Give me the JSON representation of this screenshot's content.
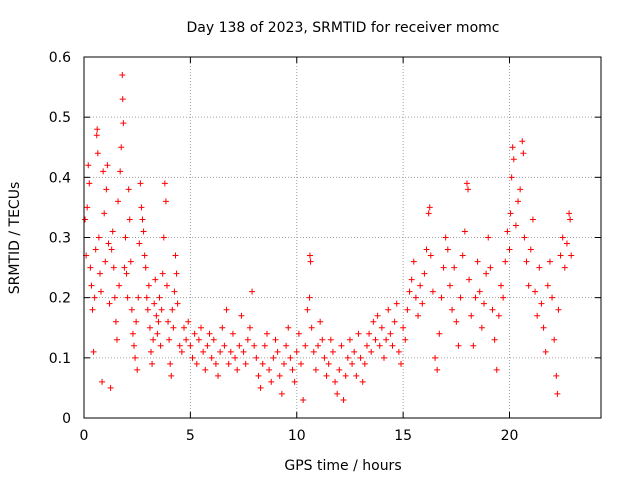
{
  "chart_data": {
    "type": "scatter",
    "title": "Day 138 of 2023, SRMTID for receiver momc",
    "xlabel": "GPS time / hours",
    "ylabel": "SRMTID / TECUs",
    "xlim": [
      0,
      24.3
    ],
    "ylim": [
      0,
      0.6
    ],
    "xticks": [
      0,
      5,
      10,
      15,
      20
    ],
    "xtick_labels": [
      "0",
      "5",
      "10",
      "15",
      "20"
    ],
    "yticks": [
      0,
      0.1,
      0.2,
      0.3,
      0.4,
      0.5,
      0.6
    ],
    "ytick_labels": [
      "0",
      "0.1",
      "0.2",
      "0.3",
      "0.4",
      "0.5",
      "0.6"
    ],
    "grid": true,
    "marker": "+",
    "color": "#ff0000",
    "series": [
      {
        "name": "SRMTID",
        "points": [
          [
            0.05,
            0.33
          ],
          [
            0.1,
            0.27
          ],
          [
            0.15,
            0.35
          ],
          [
            0.2,
            0.42
          ],
          [
            0.25,
            0.39
          ],
          [
            0.3,
            0.25
          ],
          [
            0.35,
            0.22
          ],
          [
            0.4,
            0.18
          ],
          [
            0.45,
            0.11
          ],
          [
            0.5,
            0.2
          ],
          [
            0.55,
            0.28
          ],
          [
            0.6,
            0.47
          ],
          [
            0.62,
            0.48
          ],
          [
            0.65,
            0.44
          ],
          [
            0.7,
            0.3
          ],
          [
            0.75,
            0.24
          ],
          [
            0.8,
            0.21
          ],
          [
            0.85,
            0.06
          ],
          [
            0.9,
            0.41
          ],
          [
            0.95,
            0.34
          ],
          [
            1.0,
            0.26
          ],
          [
            1.05,
            0.38
          ],
          [
            1.1,
            0.42
          ],
          [
            1.15,
            0.29
          ],
          [
            1.2,
            0.19
          ],
          [
            1.25,
            0.05
          ],
          [
            1.3,
            0.28
          ],
          [
            1.35,
            0.31
          ],
          [
            1.4,
            0.25
          ],
          [
            1.45,
            0.2
          ],
          [
            1.5,
            0.16
          ],
          [
            1.55,
            0.13
          ],
          [
            1.6,
            0.36
          ],
          [
            1.65,
            0.22
          ],
          [
            1.7,
            0.41
          ],
          [
            1.75,
            0.45
          ],
          [
            1.8,
            0.57
          ],
          [
            1.82,
            0.53
          ],
          [
            1.85,
            0.49
          ],
          [
            1.9,
            0.25
          ],
          [
            1.95,
            0.3
          ],
          [
            2.0,
            0.24
          ],
          [
            2.05,
            0.2
          ],
          [
            2.1,
            0.38
          ],
          [
            2.15,
            0.33
          ],
          [
            2.2,
            0.26
          ],
          [
            2.25,
            0.18
          ],
          [
            2.3,
            0.14
          ],
          [
            2.35,
            0.12
          ],
          [
            2.4,
            0.1
          ],
          [
            2.45,
            0.16
          ],
          [
            2.5,
            0.08
          ],
          [
            2.55,
            0.2
          ],
          [
            2.6,
            0.29
          ],
          [
            2.65,
            0.39
          ],
          [
            2.7,
            0.35
          ],
          [
            2.75,
            0.33
          ],
          [
            2.8,
            0.31
          ],
          [
            2.85,
            0.27
          ],
          [
            2.9,
            0.25
          ],
          [
            2.95,
            0.2
          ],
          [
            3.0,
            0.18
          ],
          [
            3.05,
            0.22
          ],
          [
            3.1,
            0.15
          ],
          [
            3.15,
            0.11
          ],
          [
            3.2,
            0.09
          ],
          [
            3.25,
            0.13
          ],
          [
            3.3,
            0.19
          ],
          [
            3.35,
            0.23
          ],
          [
            3.4,
            0.17
          ],
          [
            3.45,
            0.14
          ],
          [
            3.5,
            0.16
          ],
          [
            3.55,
            0.2
          ],
          [
            3.6,
            0.12
          ],
          [
            3.65,
            0.18
          ],
          [
            3.7,
            0.24
          ],
          [
            3.75,
            0.3
          ],
          [
            3.8,
            0.39
          ],
          [
            3.85,
            0.36
          ],
          [
            3.9,
            0.22
          ],
          [
            3.95,
            0.16
          ],
          [
            4.0,
            0.13
          ],
          [
            4.05,
            0.09
          ],
          [
            4.1,
            0.07
          ],
          [
            4.15,
            0.18
          ],
          [
            4.2,
            0.15
          ],
          [
            4.25,
            0.21
          ],
          [
            4.3,
            0.27
          ],
          [
            4.35,
            0.24
          ],
          [
            4.4,
            0.19
          ],
          [
            4.5,
            0.12
          ],
          [
            4.6,
            0.11
          ],
          [
            4.7,
            0.15
          ],
          [
            4.8,
            0.13
          ],
          [
            4.9,
            0.16
          ],
          [
            5.0,
            0.12
          ],
          [
            5.1,
            0.1
          ],
          [
            5.2,
            0.14
          ],
          [
            5.3,
            0.09
          ],
          [
            5.4,
            0.13
          ],
          [
            5.5,
            0.15
          ],
          [
            5.6,
            0.11
          ],
          [
            5.7,
            0.08
          ],
          [
            5.8,
            0.12
          ],
          [
            5.9,
            0.14
          ],
          [
            6.0,
            0.1
          ],
          [
            6.1,
            0.13
          ],
          [
            6.2,
            0.09
          ],
          [
            6.3,
            0.07
          ],
          [
            6.4,
            0.11
          ],
          [
            6.5,
            0.15
          ],
          [
            6.6,
            0.12
          ],
          [
            6.7,
            0.18
          ],
          [
            6.8,
            0.09
          ],
          [
            6.9,
            0.11
          ],
          [
            7.0,
            0.14
          ],
          [
            7.1,
            0.1
          ],
          [
            7.2,
            0.08
          ],
          [
            7.3,
            0.12
          ],
          [
            7.4,
            0.17
          ],
          [
            7.5,
            0.11
          ],
          [
            7.6,
            0.09
          ],
          [
            7.7,
            0.13
          ],
          [
            7.8,
            0.15
          ],
          [
            7.9,
            0.21
          ],
          [
            8.0,
            0.12
          ],
          [
            8.1,
            0.1
          ],
          [
            8.2,
            0.07
          ],
          [
            8.3,
            0.05
          ],
          [
            8.4,
            0.09
          ],
          [
            8.5,
            0.12
          ],
          [
            8.6,
            0.14
          ],
          [
            8.7,
            0.08
          ],
          [
            8.8,
            0.06
          ],
          [
            8.9,
            0.1
          ],
          [
            9.0,
            0.13
          ],
          [
            9.1,
            0.11
          ],
          [
            9.2,
            0.07
          ],
          [
            9.3,
            0.04
          ],
          [
            9.4,
            0.09
          ],
          [
            9.5,
            0.12
          ],
          [
            9.6,
            0.15
          ],
          [
            9.7,
            0.1
          ],
          [
            9.8,
            0.08
          ],
          [
            9.9,
            0.06
          ],
          [
            10.0,
            0.11
          ],
          [
            10.1,
            0.14
          ],
          [
            10.2,
            0.09
          ],
          [
            10.3,
            0.03
          ],
          [
            10.4,
            0.12
          ],
          [
            10.5,
            0.18
          ],
          [
            10.6,
            0.2
          ],
          [
            10.62,
            0.27
          ],
          [
            10.65,
            0.26
          ],
          [
            10.7,
            0.15
          ],
          [
            10.8,
            0.11
          ],
          [
            10.9,
            0.08
          ],
          [
            11.0,
            0.12
          ],
          [
            11.1,
            0.16
          ],
          [
            11.2,
            0.13
          ],
          [
            11.3,
            0.1
          ],
          [
            11.4,
            0.07
          ],
          [
            11.5,
            0.09
          ],
          [
            11.6,
            0.13
          ],
          [
            11.7,
            0.11
          ],
          [
            11.8,
            0.06
          ],
          [
            11.9,
            0.04
          ],
          [
            12.0,
            0.08
          ],
          [
            12.1,
            0.12
          ],
          [
            12.2,
            0.03
          ],
          [
            12.3,
            0.07
          ],
          [
            12.4,
            0.1
          ],
          [
            12.5,
            0.13
          ],
          [
            12.6,
            0.09
          ],
          [
            12.7,
            0.11
          ],
          [
            12.8,
            0.07
          ],
          [
            12.9,
            0.14
          ],
          [
            13.0,
            0.1
          ],
          [
            13.1,
            0.06
          ],
          [
            13.2,
            0.09
          ],
          [
            13.3,
            0.12
          ],
          [
            13.4,
            0.14
          ],
          [
            13.5,
            0.11
          ],
          [
            13.6,
            0.16
          ],
          [
            13.7,
            0.13
          ],
          [
            13.8,
            0.17
          ],
          [
            13.9,
            0.12
          ],
          [
            14.0,
            0.15
          ],
          [
            14.1,
            0.1
          ],
          [
            14.2,
            0.13
          ],
          [
            14.3,
            0.18
          ],
          [
            14.4,
            0.14
          ],
          [
            14.5,
            0.12
          ],
          [
            14.6,
            0.16
          ],
          [
            14.7,
            0.19
          ],
          [
            14.8,
            0.11
          ],
          [
            14.9,
            0.09
          ],
          [
            15.0,
            0.15
          ],
          [
            15.1,
            0.13
          ],
          [
            15.2,
            0.18
          ],
          [
            15.3,
            0.21
          ],
          [
            15.4,
            0.23
          ],
          [
            15.5,
            0.26
          ],
          [
            15.6,
            0.2
          ],
          [
            15.7,
            0.17
          ],
          [
            15.8,
            0.22
          ],
          [
            15.9,
            0.19
          ],
          [
            16.0,
            0.24
          ],
          [
            16.1,
            0.28
          ],
          [
            16.2,
            0.34
          ],
          [
            16.25,
            0.35
          ],
          [
            16.3,
            0.27
          ],
          [
            16.4,
            0.21
          ],
          [
            16.5,
            0.1
          ],
          [
            16.6,
            0.08
          ],
          [
            16.7,
            0.14
          ],
          [
            16.8,
            0.2
          ],
          [
            16.9,
            0.25
          ],
          [
            17.0,
            0.3
          ],
          [
            17.1,
            0.28
          ],
          [
            17.2,
            0.22
          ],
          [
            17.3,
            0.18
          ],
          [
            17.4,
            0.25
          ],
          [
            17.5,
            0.16
          ],
          [
            17.6,
            0.12
          ],
          [
            17.7,
            0.2
          ],
          [
            17.8,
            0.27
          ],
          [
            17.9,
            0.31
          ],
          [
            18.0,
            0.39
          ],
          [
            18.05,
            0.38
          ],
          [
            18.1,
            0.23
          ],
          [
            18.2,
            0.17
          ],
          [
            18.3,
            0.12
          ],
          [
            18.4,
            0.2
          ],
          [
            18.5,
            0.26
          ],
          [
            18.6,
            0.21
          ],
          [
            18.7,
            0.15
          ],
          [
            18.8,
            0.19
          ],
          [
            18.9,
            0.24
          ],
          [
            19.0,
            0.3
          ],
          [
            19.1,
            0.25
          ],
          [
            19.2,
            0.18
          ],
          [
            19.3,
            0.13
          ],
          [
            19.4,
            0.08
          ],
          [
            19.5,
            0.17
          ],
          [
            19.6,
            0.22
          ],
          [
            19.7,
            0.2
          ],
          [
            19.8,
            0.26
          ],
          [
            19.9,
            0.31
          ],
          [
            20.0,
            0.28
          ],
          [
            20.05,
            0.34
          ],
          [
            20.1,
            0.4
          ],
          [
            20.15,
            0.45
          ],
          [
            20.2,
            0.43
          ],
          [
            20.3,
            0.32
          ],
          [
            20.4,
            0.36
          ],
          [
            20.5,
            0.38
          ],
          [
            20.6,
            0.46
          ],
          [
            20.65,
            0.44
          ],
          [
            20.7,
            0.3
          ],
          [
            20.8,
            0.26
          ],
          [
            20.9,
            0.22
          ],
          [
            21.0,
            0.28
          ],
          [
            21.1,
            0.33
          ],
          [
            21.2,
            0.21
          ],
          [
            21.3,
            0.17
          ],
          [
            21.4,
            0.25
          ],
          [
            21.5,
            0.19
          ],
          [
            21.6,
            0.15
          ],
          [
            21.7,
            0.11
          ],
          [
            21.8,
            0.22
          ],
          [
            21.9,
            0.26
          ],
          [
            22.0,
            0.2
          ],
          [
            22.1,
            0.13
          ],
          [
            22.2,
            0.07
          ],
          [
            22.25,
            0.04
          ],
          [
            22.3,
            0.18
          ],
          [
            22.4,
            0.27
          ],
          [
            22.5,
            0.3
          ],
          [
            22.6,
            0.25
          ],
          [
            22.7,
            0.29
          ],
          [
            22.8,
            0.34
          ],
          [
            22.85,
            0.33
          ],
          [
            22.9,
            0.27
          ]
        ]
      }
    ]
  }
}
